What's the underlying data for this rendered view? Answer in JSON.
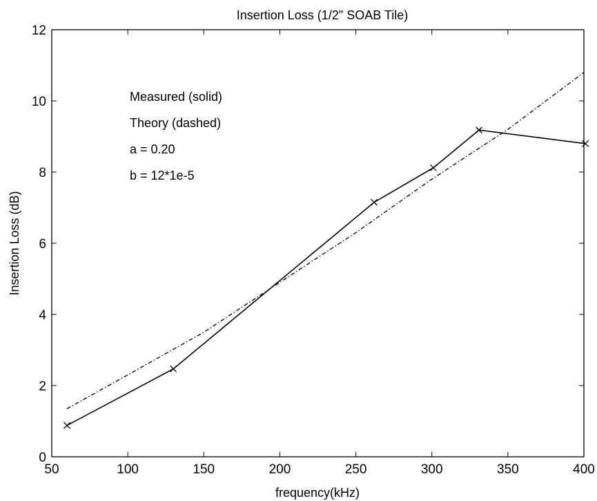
{
  "chart_data": {
    "type": "line",
    "title": "Insertion Loss (1/2\" SOAB Tile)",
    "xlabel": "frequency(kHz)",
    "ylabel": "Insertion Loss (dB)",
    "xlim": [
      50,
      400
    ],
    "ylim": [
      0,
      12
    ],
    "xticks": [
      50,
      100,
      150,
      200,
      250,
      300,
      350,
      400
    ],
    "yticks": [
      0,
      2,
      4,
      6,
      8,
      10,
      12
    ],
    "grid": false,
    "annotations": [
      "Measured (solid)",
      "Theory (dashed)",
      "a = 0.20",
      "b = 12*1e-5"
    ],
    "series": [
      {
        "style": "solid",
        "marker": "x",
        "color": "#000000",
        "x": [
          60,
          130,
          262,
          301,
          331,
          401
        ],
        "y": [
          0.88,
          2.47,
          7.15,
          8.12,
          9.18,
          8.8
        ]
      },
      {
        "style": "dashdot",
        "marker": "none",
        "color": "#000000",
        "x": [
          60,
          100,
          150,
          200,
          250,
          300,
          350,
          400
        ],
        "y": [
          1.35,
          2.3,
          3.5,
          4.9,
          6.3,
          7.8,
          9.2,
          10.8
        ]
      }
    ]
  }
}
